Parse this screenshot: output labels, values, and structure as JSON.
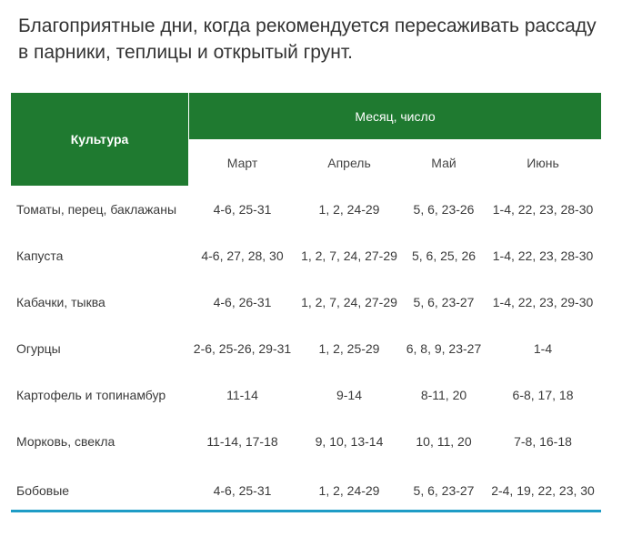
{
  "title": "Благоприятные дни, когда рекомендуется пересаживать рассаду в парники, теплицы и открытый грунт.",
  "table": {
    "crop_header": "Культура",
    "month_group_header": "Месяц, число",
    "months": [
      "Март",
      "Апрель",
      "Май",
      "Июнь"
    ],
    "rows": [
      {
        "crop": "Томаты, перец, баклажаны",
        "values": [
          "4-6, 25-31",
          "1, 2, 24-29",
          "5, 6, 23-26",
          "1-4, 22, 23, 28-30"
        ]
      },
      {
        "crop": "Капуста",
        "values": [
          "4-6, 27, 28, 30",
          "1, 2, 7, 24, 27-29",
          "5, 6, 25, 26",
          "1-4, 22, 23, 28-30"
        ]
      },
      {
        "crop": "Кабачки, тыква",
        "values": [
          "4-6, 26-31",
          "1, 2, 7, 24, 27-29",
          "5, 6, 23-27",
          "1-4, 22, 23, 29-30"
        ]
      },
      {
        "crop": "Огурцы",
        "values": [
          "2-6, 25-26, 29-31",
          "1, 2, 25-29",
          "6, 8, 9, 23-27",
          "1-4"
        ]
      },
      {
        "crop": "Картофель и топинамбур",
        "values": [
          "11-14",
          "9-14",
          "8-11, 20",
          "6-8, 17, 18"
        ]
      },
      {
        "crop": " Морковь, свекла",
        "values": [
          "11-14, 17-18",
          "9, 10, 13-14",
          "10, 11, 20",
          "7-8, 16-18"
        ]
      },
      {
        "crop": " Бобовые",
        "values": [
          "4-6, 25-31",
          "1, 2, 24-29",
          "5, 6, 23-27",
          "2-4, 19, 22, 23, 30"
        ]
      }
    ]
  },
  "colors": {
    "header_green": "#1f7a30",
    "bottom_rule": "#1e9cc6"
  }
}
